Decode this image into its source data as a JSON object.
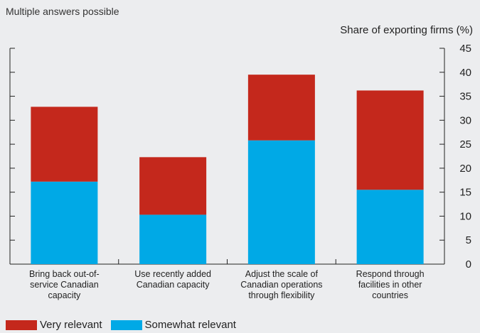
{
  "note": "Multiple answers possible",
  "colors": {
    "very_relevant": "#c4281c",
    "somewhat_relevant": "#00a9e6"
  },
  "chart_data": {
    "type": "bar",
    "stacked": true,
    "ylabel": "Share of exporting firms (%)",
    "ylim": [
      0,
      45
    ],
    "yticks": [
      0,
      5,
      10,
      15,
      20,
      25,
      30,
      35,
      40,
      45
    ],
    "categories": [
      [
        "Bring back out-of-",
        "service Canadian",
        "capacity"
      ],
      [
        "Use recently added",
        "Canadian capacity"
      ],
      [
        "Adjust the scale of",
        "Canadian operations",
        "through flexibility"
      ],
      [
        "Respond through",
        "facilities in other",
        "countries"
      ]
    ],
    "series": [
      {
        "name": "Somewhat relevant",
        "values": [
          17.2,
          10.3,
          25.8,
          15.5
        ]
      },
      {
        "name": "Very relevant",
        "values": [
          15.6,
          12.0,
          13.7,
          20.7
        ]
      }
    ],
    "legend_position": "bottom-left"
  }
}
